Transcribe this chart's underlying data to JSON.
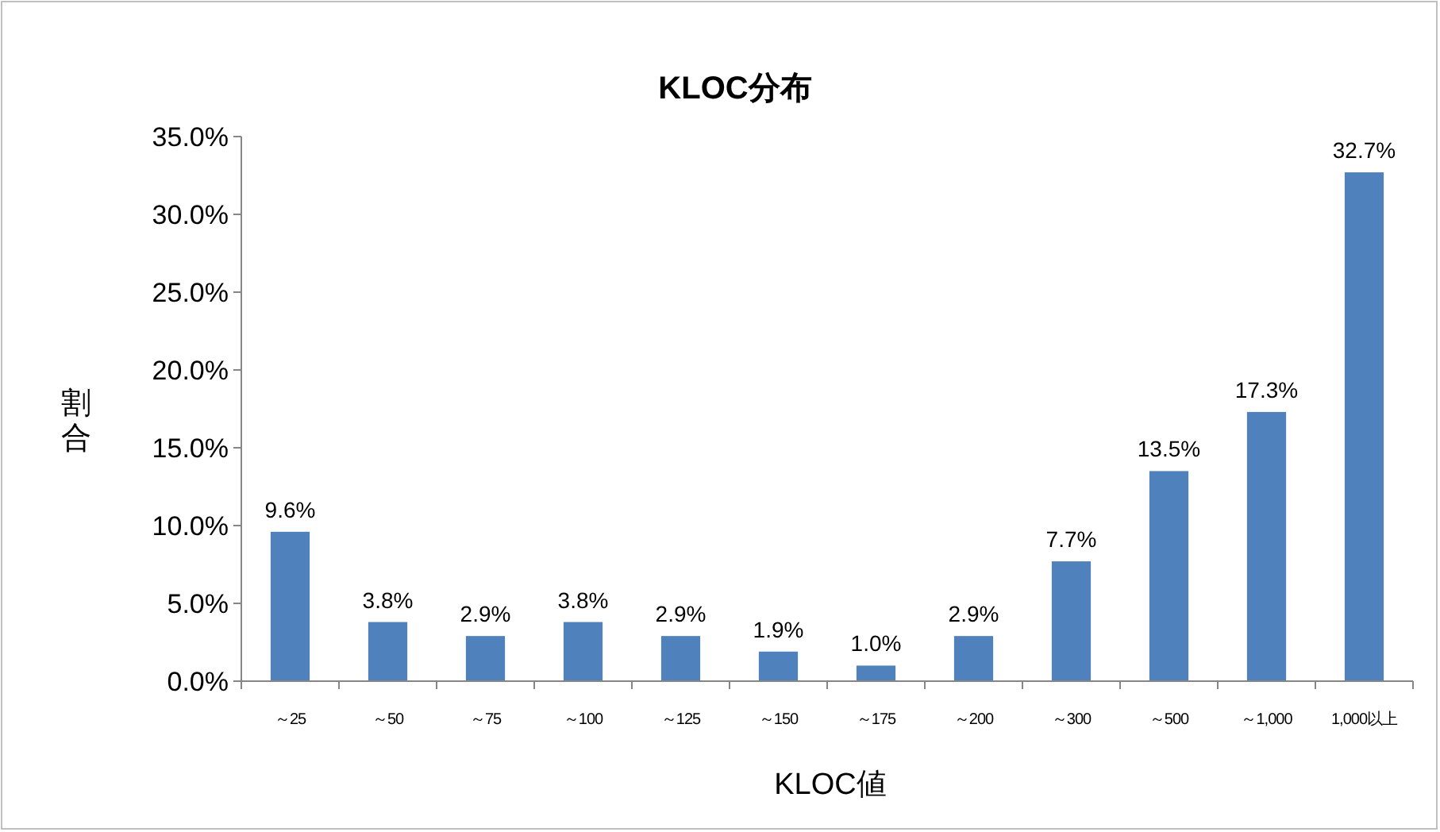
{
  "chart_data": {
    "type": "bar",
    "title": "KLOC分布",
    "xlabel": "KLOC値",
    "ylabel": "割合",
    "categories": [
      "～25",
      "～50",
      "～75",
      "～100",
      "～125",
      "～150",
      "～175",
      "～200",
      "～300",
      "～500",
      "～1,000",
      "1,000以上"
    ],
    "values": [
      9.6,
      3.8,
      2.9,
      3.8,
      2.9,
      1.9,
      1.0,
      2.9,
      7.7,
      13.5,
      17.3,
      32.7
    ],
    "value_labels": [
      "9.6%",
      "3.8%",
      "2.9%",
      "3.8%",
      "2.9%",
      "1.9%",
      "1.0%",
      "2.9%",
      "7.7%",
      "13.5%",
      "17.3%",
      "32.7%"
    ],
    "color": "#4f81bd",
    "ylim": [
      0,
      35
    ],
    "yticks": [
      {
        "value": 0,
        "label": "0.0%"
      },
      {
        "value": 5,
        "label": "5.0%"
      },
      {
        "value": 10,
        "label": "10.0%"
      },
      {
        "value": 15,
        "label": "15.0%"
      },
      {
        "value": 20,
        "label": "20.0%"
      },
      {
        "value": 25,
        "label": "25.0%"
      },
      {
        "value": 30,
        "label": "30.0%"
      },
      {
        "value": 35,
        "label": "35.0%"
      }
    ],
    "grid": false
  }
}
